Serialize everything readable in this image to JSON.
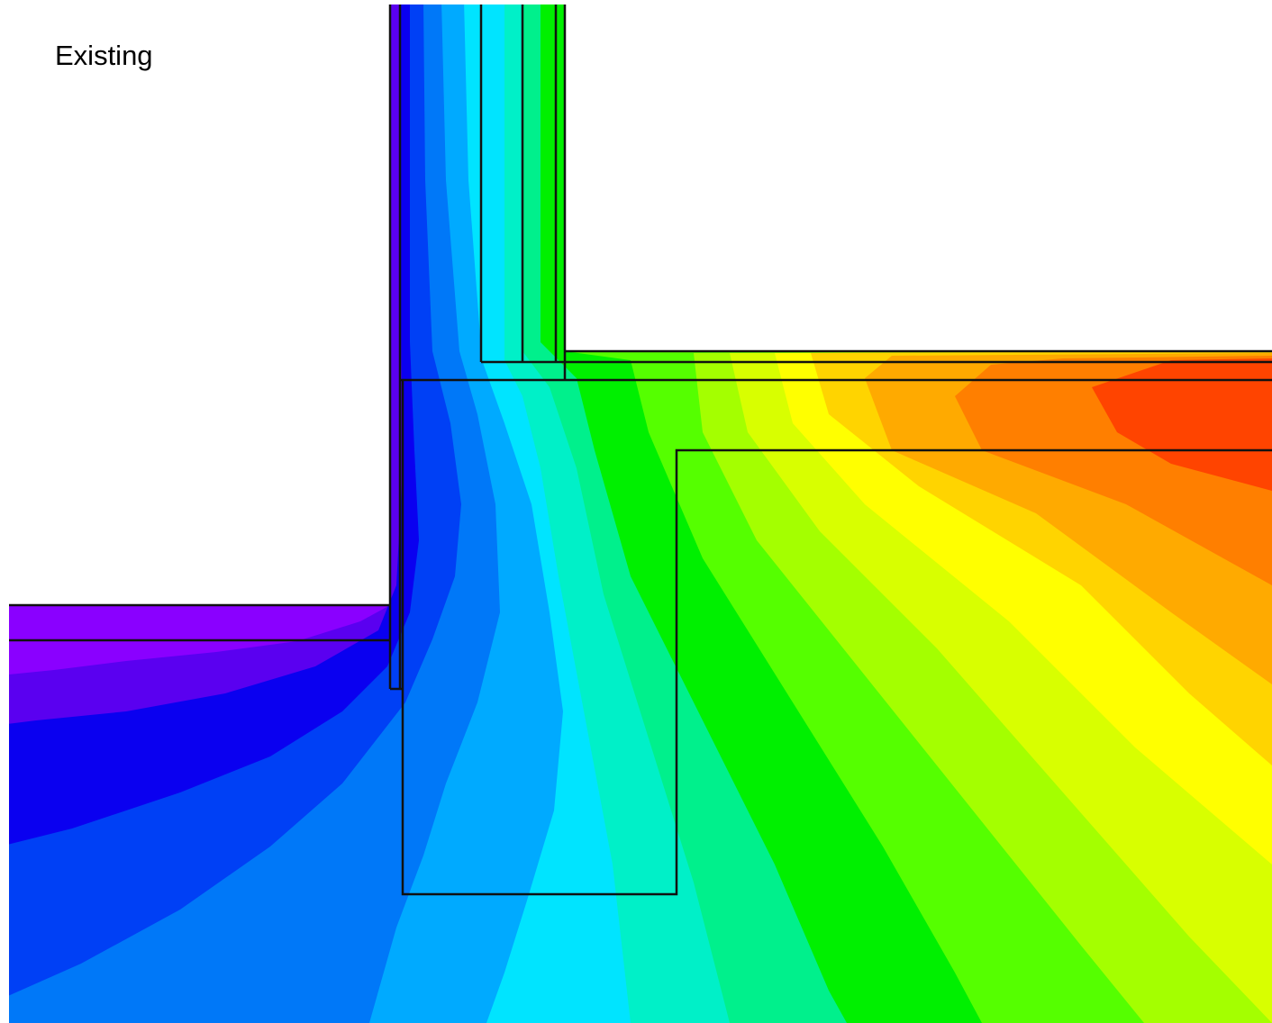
{
  "label": "Existing",
  "colors": {
    "background": "#ffffff",
    "outline": "#111111",
    "violet": "#8a00ff",
    "indigo": "#5a00f0",
    "blue_deep": "#0a00f0",
    "blue": "#0040f5",
    "azure": "#0078f8",
    "sky": "#00aaff",
    "cyan": "#00e4ff",
    "aqua": "#00f0c8",
    "spring": "#00f08c",
    "green": "#00f000",
    "lime": "#55ff00",
    "chartreuse": "#a4ff00",
    "yellow_green": "#d8ff00",
    "yellow": "#ffff00",
    "gold": "#ffd400",
    "amber": "#ffaa00",
    "orange": "#ff7f00",
    "red_orange": "#ff4400"
  }
}
